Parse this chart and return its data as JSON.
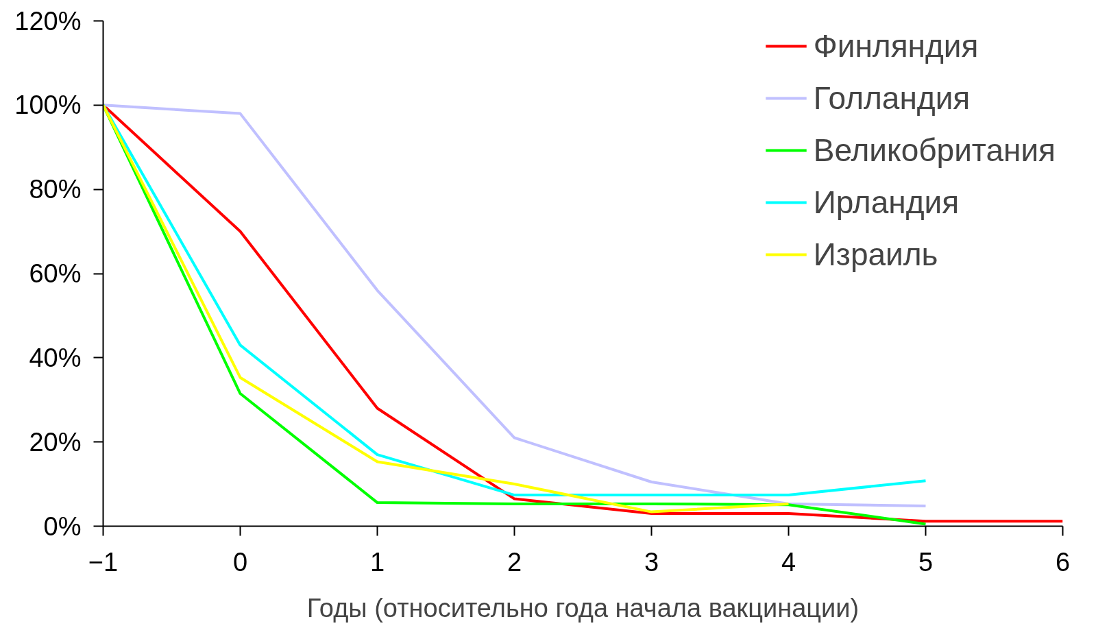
{
  "chart_data": {
    "type": "line",
    "xlabel": "Годы (относительно года начала вакцинации)",
    "xlim": [
      -1,
      6
    ],
    "xticks": [
      -1,
      0,
      1,
      2,
      3,
      4,
      5,
      6
    ],
    "ylim": [
      0,
      120
    ],
    "yticks": [
      {
        "value": 0,
        "label": "0%"
      },
      {
        "value": 20,
        "label": "20%"
      },
      {
        "value": 40,
        "label": "40%"
      },
      {
        "value": 60,
        "label": "60%"
      },
      {
        "value": 80,
        "label": "80%"
      },
      {
        "value": 100,
        "label": "100%"
      },
      {
        "value": 120,
        "label": "120%"
      }
    ],
    "grid": false,
    "legend": "top right",
    "marker": "none",
    "line_style": "solid",
    "series": [
      {
        "name": "Финляндия",
        "color": "#ff0000",
        "x": [
          -1,
          0,
          1,
          2,
          3,
          4,
          5,
          6
        ],
        "values": [
          100,
          70,
          28,
          6.5,
          3,
          3,
          1.2,
          1.2
        ]
      },
      {
        "name": "Голландия",
        "color": "#c0c0ff",
        "x": [
          -1,
          0,
          1,
          2,
          3,
          4,
          5
        ],
        "values": [
          100,
          98,
          56,
          21,
          10.5,
          5.3,
          4.8
        ]
      },
      {
        "name": "Великобритания",
        "color": "#00ff00",
        "x": [
          -1,
          0,
          1,
          2,
          3,
          4,
          5
        ],
        "values": [
          100,
          31.5,
          5.6,
          5.3,
          5.3,
          5.1,
          0.5
        ]
      },
      {
        "name": "Ирландия",
        "color": "#00ffff",
        "x": [
          -1,
          0,
          1,
          2,
          3,
          4,
          5
        ],
        "values": [
          100,
          43,
          17,
          7.4,
          7.4,
          7.4,
          10.8
        ]
      },
      {
        "name": "Израиль",
        "color": "#ffff00",
        "x": [
          -1,
          0,
          1,
          2,
          3,
          4
        ],
        "values": [
          100,
          35.3,
          15.3,
          10,
          3.4,
          5.3
        ]
      }
    ]
  }
}
